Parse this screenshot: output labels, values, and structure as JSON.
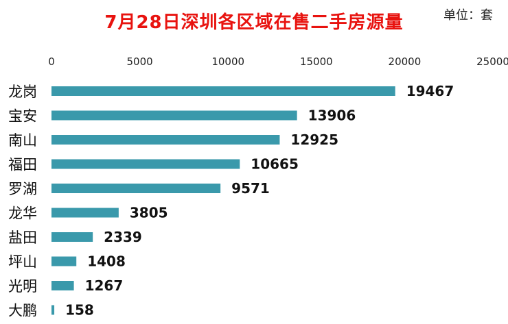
{
  "chart_data": {
    "type": "bar",
    "orientation": "horizontal",
    "title": "7月28日深圳各区域在售二手房源量",
    "unit_label": "单位：套",
    "categories": [
      "龙岗",
      "宝安",
      "南山",
      "福田",
      "罗湖",
      "龙华",
      "盐田",
      "坪山",
      "光明",
      "大鹏"
    ],
    "values": [
      19467,
      13906,
      12925,
      10665,
      9571,
      3805,
      2339,
      1408,
      1267,
      158
    ],
    "xlim": [
      0,
      25000
    ],
    "xticks": [
      0,
      5000,
      10000,
      15000,
      20000,
      25000
    ],
    "axis_position": "top",
    "grid": false,
    "bar_color": "#3a99ab",
    "title_color": "#e8130f"
  }
}
